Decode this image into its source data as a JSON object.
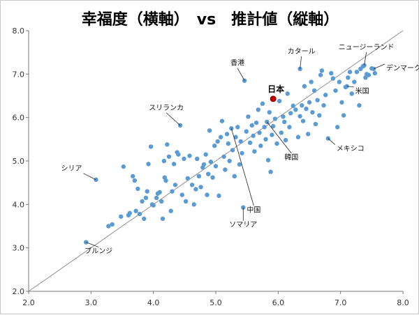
{
  "chart_data": {
    "type": "scatter",
    "title": "幸福度（横軸）　vs　推計値（縦軸）",
    "xlabel": "",
    "ylabel": "",
    "xlim": [
      2.0,
      8.0
    ],
    "ylim": [
      2.0,
      8.0
    ],
    "xticks": [
      "2.0",
      "3.0",
      "4.0",
      "5.0",
      "6.0",
      "7.0",
      "8.0"
    ],
    "yticks": [
      "2.0",
      "3.0",
      "4.0",
      "5.0",
      "6.0",
      "7.0",
      "8.0"
    ],
    "grid": false,
    "reference_line": [
      [
        2.0,
        2.0
      ],
      [
        8.0,
        8.0
      ]
    ],
    "point_color": "#5b9bd5",
    "highlight_color": "#c00000",
    "points": [
      [
        2.92,
        3.13
      ],
      [
        3.08,
        4.57
      ],
      [
        3.28,
        3.5
      ],
      [
        3.34,
        3.54
      ],
      [
        3.48,
        3.72
      ],
      [
        3.52,
        4.87
      ],
      [
        3.6,
        3.75
      ],
      [
        3.62,
        3.8
      ],
      [
        3.67,
        4.65
      ],
      [
        3.7,
        4.55
      ],
      [
        3.72,
        3.85
      ],
      [
        3.75,
        4.36
      ],
      [
        3.78,
        3.78
      ],
      [
        3.82,
        4.07
      ],
      [
        3.85,
        3.67
      ],
      [
        3.88,
        4.15
      ],
      [
        3.9,
        4.3
      ],
      [
        3.92,
        4.93
      ],
      [
        3.96,
        5.33
      ],
      [
        3.98,
        4.0
      ],
      [
        4.0,
        3.98
      ],
      [
        4.05,
        4.15
      ],
      [
        4.07,
        4.25
      ],
      [
        4.1,
        4.28
      ],
      [
        4.13,
        4.07
      ],
      [
        4.15,
        3.67
      ],
      [
        4.17,
        5.0
      ],
      [
        4.18,
        4.62
      ],
      [
        4.2,
        4.55
      ],
      [
        4.22,
        5.38
      ],
      [
        4.25,
        5.1
      ],
      [
        4.28,
        3.85
      ],
      [
        4.3,
        4.3
      ],
      [
        4.33,
        4.93
      ],
      [
        4.35,
        4.45
      ],
      [
        4.38,
        5.2
      ],
      [
        4.4,
        5.15
      ],
      [
        4.43,
        5.82
      ],
      [
        4.46,
        4.22
      ],
      [
        4.49,
        5.05
      ],
      [
        4.52,
        4.07
      ],
      [
        4.55,
        4.6
      ],
      [
        4.58,
        5.12
      ],
      [
        4.62,
        4.45
      ],
      [
        4.65,
        4.0
      ],
      [
        4.68,
        4.35
      ],
      [
        4.7,
        5.05
      ],
      [
        4.73,
        4.65
      ],
      [
        4.76,
        4.4
      ],
      [
        4.79,
        4.85
      ],
      [
        4.81,
        4.92
      ],
      [
        4.84,
        5.15
      ],
      [
        4.86,
        4.22
      ],
      [
        4.88,
        4.7
      ],
      [
        4.9,
        5.7
      ],
      [
        4.92,
        4.98
      ],
      [
        4.95,
        4.62
      ],
      [
        4.98,
        5.35
      ],
      [
        5.0,
        4.88
      ],
      [
        5.03,
        5.45
      ],
      [
        5.05,
        4.2
      ],
      [
        5.08,
        5.55
      ],
      [
        5.1,
        5.92
      ],
      [
        5.13,
        5.1
      ],
      [
        5.15,
        4.8
      ],
      [
        5.18,
        5.62
      ],
      [
        5.2,
        5.4
      ],
      [
        5.22,
        5.0
      ],
      [
        5.25,
        5.75
      ],
      [
        5.27,
        5.25
      ],
      [
        5.3,
        4.65
      ],
      [
        5.32,
        5.55
      ],
      [
        5.35,
        5.78
      ],
      [
        5.38,
        4.92
      ],
      [
        5.4,
        5.45
      ],
      [
        5.42,
        5.18
      ],
      [
        5.44,
        3.93
      ],
      [
        5.46,
        6.85
      ],
      [
        5.49,
        5.68
      ],
      [
        5.52,
        6.02
      ],
      [
        5.55,
        5.42
      ],
      [
        5.58,
        5.82
      ],
      [
        5.6,
        5.58
      ],
      [
        5.62,
        5.22
      ],
      [
        5.65,
        5.88
      ],
      [
        5.68,
        6.18
      ],
      [
        5.7,
        5.65
      ],
      [
        5.72,
        5.35
      ],
      [
        5.75,
        6.32
      ],
      [
        5.78,
        5.78
      ],
      [
        5.8,
        5.5
      ],
      [
        5.82,
        5.9
      ],
      [
        5.84,
        5.02
      ],
      [
        5.86,
        6.12
      ],
      [
        5.88,
        4.75
      ],
      [
        5.9,
        5.6
      ],
      [
        5.92,
        5.8
      ],
      [
        5.95,
        5.97
      ],
      [
        5.98,
        5.4
      ],
      [
        6.02,
        6.38
      ],
      [
        6.05,
        5.65
      ],
      [
        6.08,
        6.02
      ],
      [
        6.1,
        5.9
      ],
      [
        6.12,
        5.48
      ],
      [
        6.15,
        6.55
      ],
      [
        6.18,
        5.78
      ],
      [
        6.2,
        6.1
      ],
      [
        6.24,
        6.27
      ],
      [
        6.28,
        6.18
      ],
      [
        6.32,
        5.55
      ],
      [
        6.35,
        6.03
      ],
      [
        6.38,
        6.28
      ],
      [
        6.4,
        5.92
      ],
      [
        6.42,
        6.72
      ],
      [
        6.45,
        6.2
      ],
      [
        6.48,
        5.62
      ],
      [
        6.5,
        6.35
      ],
      [
        6.53,
        6.82
      ],
      [
        6.55,
        6.12
      ],
      [
        6.58,
        6.62
      ],
      [
        6.6,
        5.85
      ],
      [
        6.63,
        6.4
      ],
      [
        6.66,
        6.05
      ],
      [
        6.68,
        6.98
      ],
      [
        6.7,
        7.08
      ],
      [
        6.73,
        6.28
      ],
      [
        6.76,
        6.52
      ],
      [
        6.8,
        5.52
      ],
      [
        6.85,
        7.02
      ],
      [
        6.88,
        6.9
      ],
      [
        6.92,
        6.62
      ],
      [
        6.95,
        5.78
      ],
      [
        6.98,
        6.82
      ],
      [
        7.02,
        6.35
      ],
      [
        7.05,
        6.05
      ],
      [
        7.08,
        6.7
      ],
      [
        7.12,
        6.92
      ],
      [
        7.15,
        7.05
      ],
      [
        7.18,
        6.55
      ],
      [
        7.22,
        6.82
      ],
      [
        7.26,
        7.05
      ],
      [
        7.3,
        6.28
      ],
      [
        7.32,
        7.12
      ],
      [
        7.36,
        7.18
      ],
      [
        7.4,
        6.92
      ],
      [
        7.42,
        7.0
      ],
      [
        7.45,
        6.98
      ],
      [
        7.5,
        7.13
      ],
      [
        7.53,
        7.12
      ],
      [
        7.55,
        7.02
      ],
      [
        6.35,
        7.12
      ],
      [
        7.1,
        6.72
      ],
      [
        7.38,
        7.2
      ]
    ],
    "highlight": {
      "name": "日本",
      "x": 5.92,
      "y": 6.43
    },
    "annotations": [
      {
        "label": "スリランカ",
        "x": 4.43,
        "y": 5.82
      },
      {
        "label": "香港",
        "x": 5.46,
        "y": 6.85
      },
      {
        "label": "カタール",
        "x": 6.35,
        "y": 7.12
      },
      {
        "label": "ニュージーランド",
        "x": 7.38,
        "y": 7.2
      },
      {
        "label": "デンマーク",
        "x": 7.53,
        "y": 7.12
      },
      {
        "label": "米国",
        "x": 7.1,
        "y": 6.72
      },
      {
        "label": "メキシコ",
        "x": 6.8,
        "y": 5.52
      },
      {
        "label": "韓国",
        "x": 5.82,
        "y": 5.9
      },
      {
        "label": "中国",
        "x": 5.25,
        "y": 5.75
      },
      {
        "label": "シリア",
        "x": 3.08,
        "y": 4.57
      },
      {
        "label": "ソマリア",
        "x": 5.44,
        "y": 3.93
      },
      {
        "label": "ブルンジ",
        "x": 2.92,
        "y": 3.13
      }
    ]
  }
}
